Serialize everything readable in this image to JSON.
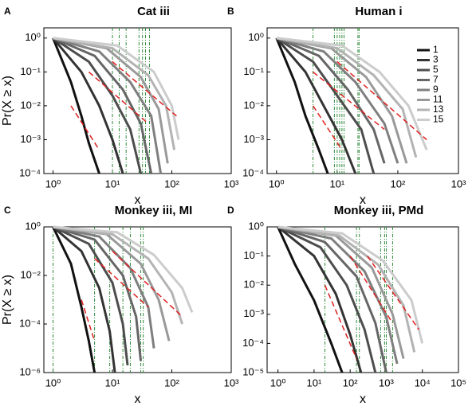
{
  "chart_data": [
    {
      "type": "line",
      "panel": "A",
      "title": "Cat iii",
      "xlabel": "x",
      "ylabel": "Pr(X ≥ x)",
      "log_x": true,
      "log_y": true,
      "xlim": [
        0.7,
        1000
      ],
      "ylim": [
        0.0001,
        2
      ],
      "xticks": [
        {
          "value": 1,
          "label": "10⁰"
        },
        {
          "value": 10,
          "label": "10¹"
        },
        {
          "value": 100,
          "label": "10²"
        },
        {
          "value": 1000,
          "label": "10³"
        }
      ],
      "yticks": [
        {
          "value": 0.0001,
          "label": "10⁻⁴"
        },
        {
          "value": 0.001,
          "label": "10⁻³"
        },
        {
          "value": 0.01,
          "label": "10⁻²"
        },
        {
          "value": 0.1,
          "label": "10⁻¹"
        },
        {
          "value": 1,
          "label": "10⁰"
        }
      ],
      "series": [
        {
          "color": "#111111",
          "x": [
            1,
            2,
            3,
            4,
            6
          ],
          "values": [
            1,
            0.05,
            0.005,
            0.0008,
            0.0001
          ]
        },
        {
          "color": "#333333",
          "x": [
            1,
            3,
            6,
            10,
            15
          ],
          "values": [
            1,
            0.1,
            0.01,
            0.001,
            0.0001
          ]
        },
        {
          "color": "#4d4d4d",
          "x": [
            1,
            4,
            10,
            20,
            30
          ],
          "values": [
            1,
            0.2,
            0.02,
            0.002,
            0.0001
          ]
        },
        {
          "color": "#666666",
          "x": [
            1,
            5,
            15,
            30,
            45
          ],
          "values": [
            1,
            0.3,
            0.03,
            0.003,
            0.0001
          ]
        },
        {
          "color": "#7f7f7f",
          "x": [
            1,
            6,
            20,
            45,
            65
          ],
          "values": [
            1,
            0.4,
            0.05,
            0.005,
            0.0001
          ]
        },
        {
          "color": "#999999",
          "x": [
            1,
            8,
            30,
            60,
            85
          ],
          "values": [
            1,
            0.5,
            0.07,
            0.008,
            0.0002
          ]
        },
        {
          "color": "#b3b3b3",
          "x": [
            1,
            10,
            40,
            80,
            110
          ],
          "values": [
            1,
            0.5,
            0.08,
            0.01,
            0.0005
          ]
        },
        {
          "color": "#cccccc",
          "x": [
            1,
            12,
            50,
            100,
            130
          ],
          "values": [
            1,
            0.6,
            0.1,
            0.01,
            0.001
          ]
        }
      ],
      "fits": [
        {
          "color": "#e02020",
          "x": [
            2,
            6
          ],
          "values": [
            0.01,
            0.0005
          ]
        },
        {
          "color": "#e02020",
          "x": [
            4,
            40
          ],
          "values": [
            0.1,
            0.003
          ]
        },
        {
          "color": "#e02020",
          "x": [
            10,
            120
          ],
          "values": [
            0.2,
            0.005
          ]
        }
      ],
      "vlines": [
        10,
        13,
        17,
        28,
        32,
        36,
        42
      ],
      "vline_color": "#2e8b3a"
    },
    {
      "type": "line",
      "panel": "B",
      "title": "Human i",
      "xlabel": "x",
      "log_x": true,
      "log_y": true,
      "legend": "upper right",
      "xlim": [
        0.7,
        1000
      ],
      "ylim": [
        0.0001,
        2
      ],
      "xticks": [
        {
          "value": 1,
          "label": "10⁰"
        },
        {
          "value": 10,
          "label": "10¹"
        },
        {
          "value": 100,
          "label": "10²"
        },
        {
          "value": 1000,
          "label": "10³"
        }
      ],
      "yticks": [
        {
          "value": 0.0001,
          "label": "10⁻⁴"
        },
        {
          "value": 0.001,
          "label": "10⁻³"
        },
        {
          "value": 0.01,
          "label": "10⁻²"
        },
        {
          "value": 0.1,
          "label": "10⁻¹"
        },
        {
          "value": 1,
          "label": "10⁰"
        }
      ],
      "series": [
        {
          "name": "1",
          "color": "#111111",
          "x": [
            1,
            2,
            3,
            5,
            7
          ],
          "values": [
            1,
            0.05,
            0.005,
            0.0005,
            0.0001
          ]
        },
        {
          "name": "3",
          "color": "#333333",
          "x": [
            1,
            3,
            6,
            12,
            20
          ],
          "values": [
            1,
            0.1,
            0.01,
            0.001,
            0.0001
          ]
        },
        {
          "name": "5",
          "color": "#4d4d4d",
          "x": [
            1,
            4,
            10,
            25,
            40
          ],
          "values": [
            1,
            0.2,
            0.02,
            0.002,
            0.0001
          ]
        },
        {
          "name": "7",
          "color": "#666666",
          "x": [
            1,
            5,
            15,
            40,
            60
          ],
          "values": [
            1,
            0.3,
            0.03,
            0.002,
            0.0002
          ]
        },
        {
          "name": "9",
          "color": "#7f7f7f",
          "x": [
            1,
            6,
            20,
            60,
            100
          ],
          "values": [
            1,
            0.4,
            0.05,
            0.003,
            0.0002
          ]
        },
        {
          "name": "11",
          "color": "#999999",
          "x": [
            1,
            8,
            30,
            80,
            140
          ],
          "values": [
            1,
            0.5,
            0.07,
            0.005,
            0.0002
          ]
        },
        {
          "name": "13",
          "color": "#b3b3b3",
          "x": [
            1,
            10,
            40,
            120,
            200
          ],
          "values": [
            1,
            0.5,
            0.08,
            0.008,
            0.0003
          ]
        },
        {
          "name": "15",
          "color": "#cccccc",
          "x": [
            1,
            12,
            50,
            150,
            300
          ],
          "values": [
            1,
            0.6,
            0.1,
            0.01,
            0.0005
          ]
        }
      ],
      "fits": [
        {
          "color": "#e02020",
          "x": [
            4,
            12
          ],
          "values": [
            0.01,
            0.0005
          ]
        },
        {
          "color": "#e02020",
          "x": [
            4,
            60
          ],
          "values": [
            0.1,
            0.002
          ]
        },
        {
          "color": "#e02020",
          "x": [
            10,
            300
          ],
          "values": [
            0.2,
            0.001
          ]
        }
      ],
      "vlines": [
        4,
        9,
        10,
        11,
        12,
        13,
        22,
        23
      ],
      "vline_color": "#2e8b3a"
    },
    {
      "type": "line",
      "panel": "C",
      "title": "Monkey iii, MI",
      "xlabel": "x",
      "ylabel": "Pr(X ≥ x)",
      "log_x": true,
      "log_y": true,
      "xlim": [
        0.7,
        1000
      ],
      "ylim": [
        1e-06,
        1
      ],
      "xticks": [
        {
          "value": 1,
          "label": "10⁰"
        },
        {
          "value": 10,
          "label": "10¹"
        },
        {
          "value": 100,
          "label": "10²"
        },
        {
          "value": 1000,
          "label": "10³"
        }
      ],
      "yticks": [
        {
          "value": 1e-06,
          "label": "10⁻⁶"
        },
        {
          "value": 0.0001,
          "label": "10⁻⁴"
        },
        {
          "value": 0.01,
          "label": "10⁻²"
        },
        {
          "value": 1,
          "label": "10⁰"
        }
      ],
      "series": [
        {
          "color": "#111111",
          "x": [
            1,
            2,
            3,
            4,
            5
          ],
          "values": [
            1,
            0.03,
            0.0005,
            2e-05,
            1e-06
          ]
        },
        {
          "color": "#333333",
          "x": [
            1,
            3,
            6,
            9,
            11
          ],
          "values": [
            1,
            0.1,
            0.003,
            5e-05,
            1e-06
          ]
        },
        {
          "color": "#4d4d4d",
          "x": [
            1,
            4,
            10,
            15,
            18
          ],
          "values": [
            1,
            0.2,
            0.005,
            0.0001,
            2e-06
          ]
        },
        {
          "color": "#666666",
          "x": [
            1,
            5,
            15,
            25,
            30
          ],
          "values": [
            1,
            0.3,
            0.01,
            0.0002,
            3e-06
          ]
        },
        {
          "color": "#7f7f7f",
          "x": [
            1,
            6,
            20,
            40,
            50
          ],
          "values": [
            1,
            0.4,
            0.02,
            0.0005,
            1e-05
          ]
        },
        {
          "color": "#999999",
          "x": [
            1,
            8,
            30,
            60,
            90
          ],
          "values": [
            1,
            0.5,
            0.03,
            0.001,
            2e-05
          ]
        },
        {
          "color": "#b3b3b3",
          "x": [
            1,
            10,
            40,
            100,
            150
          ],
          "values": [
            1,
            0.5,
            0.05,
            0.002,
            0.0001
          ]
        },
        {
          "color": "#cccccc",
          "x": [
            1,
            12,
            50,
            150,
            220
          ],
          "values": [
            1,
            0.6,
            0.07,
            0.003,
            0.0003
          ]
        }
      ],
      "fits": [
        {
          "color": "#e02020",
          "x": [
            3,
            5
          ],
          "values": [
            0.001,
            2e-05
          ]
        },
        {
          "color": "#e02020",
          "x": [
            5,
            40
          ],
          "values": [
            0.05,
            0.0005
          ]
        },
        {
          "color": "#e02020",
          "x": [
            10,
            150
          ],
          "values": [
            0.1,
            0.0002
          ]
        }
      ],
      "vlines": [
        1,
        5,
        9,
        15,
        20,
        30,
        33
      ],
      "vline_color": "#2e8b3a"
    },
    {
      "type": "line",
      "panel": "D",
      "title": "Monkey iii, PMd",
      "xlabel": "x",
      "log_x": true,
      "log_y": true,
      "xlim": [
        0.5,
        100000
      ],
      "ylim": [
        1e-05,
        1
      ],
      "xticks": [
        {
          "value": 1,
          "label": "10⁰"
        },
        {
          "value": 10,
          "label": "10¹"
        },
        {
          "value": 100,
          "label": "10²"
        },
        {
          "value": 1000,
          "label": "10³"
        },
        {
          "value": 10000,
          "label": "10⁴"
        },
        {
          "value": 100000,
          "label": "10⁵"
        }
      ],
      "yticks": [
        {
          "value": 1e-05,
          "label": "10⁻⁵"
        },
        {
          "value": 0.0001,
          "label": "10⁻⁴"
        },
        {
          "value": 0.001,
          "label": "10⁻³"
        },
        {
          "value": 0.01,
          "label": "10⁻²"
        },
        {
          "value": 0.1,
          "label": "10⁻¹"
        },
        {
          "value": 1,
          "label": "10⁰"
        }
      ],
      "series": [
        {
          "color": "#111111",
          "x": [
            1,
            3,
            10,
            30,
            60
          ],
          "values": [
            1,
            0.05,
            0.003,
            0.0001,
            1e-05
          ]
        },
        {
          "color": "#333333",
          "x": [
            1,
            10,
            40,
            100,
            200
          ],
          "values": [
            1,
            0.1,
            0.005,
            0.0002,
            1e-05
          ]
        },
        {
          "color": "#4d4d4d",
          "x": [
            1,
            15,
            80,
            250,
            500
          ],
          "values": [
            1,
            0.2,
            0.01,
            0.0003,
            1e-05
          ]
        },
        {
          "color": "#666666",
          "x": [
            1,
            20,
            150,
            500,
            1000
          ],
          "values": [
            1,
            0.3,
            0.02,
            0.0005,
            1e-05
          ]
        },
        {
          "color": "#7f7f7f",
          "x": [
            1,
            30,
            250,
            1000,
            2000
          ],
          "values": [
            1,
            0.4,
            0.03,
            0.0008,
            2e-05
          ]
        },
        {
          "color": "#999999",
          "x": [
            1,
            40,
            400,
            1500,
            3000
          ],
          "values": [
            1,
            0.5,
            0.04,
            0.001,
            3e-05
          ]
        },
        {
          "color": "#b3b3b3",
          "x": [
            1,
            50,
            600,
            3000,
            6000
          ],
          "values": [
            1,
            0.5,
            0.05,
            0.002,
            5e-05
          ]
        },
        {
          "color": "#cccccc",
          "x": [
            1,
            60,
            800,
            5000,
            10000
          ],
          "values": [
            1,
            0.6,
            0.07,
            0.003,
            0.0001
          ]
        }
      ],
      "fits": [
        {
          "color": "#e02020",
          "x": [
            20,
            150
          ],
          "values": [
            0.01,
            3e-05
          ]
        },
        {
          "color": "#e02020",
          "x": [
            100,
            1500
          ],
          "values": [
            0.1,
            0.0005
          ]
        },
        {
          "color": "#e02020",
          "x": [
            300,
            8000
          ],
          "values": [
            0.1,
            0.0003
          ]
        }
      ],
      "vlines": [
        20,
        150,
        180,
        700,
        900,
        1000,
        1500
      ],
      "vline_color": "#2e8b3a"
    }
  ]
}
